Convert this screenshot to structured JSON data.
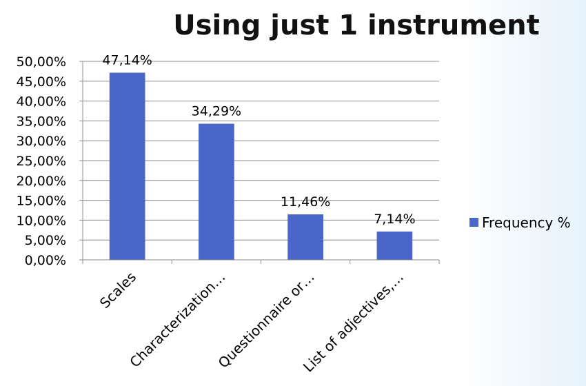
{
  "chart_data": {
    "type": "bar",
    "title": "Using just 1 instrument",
    "categories": [
      "Scales",
      "Characterization…",
      "Questionnaire or…",
      "List of adjectives,…"
    ],
    "series": [
      {
        "name": "Frequency %",
        "values": [
          47.14,
          34.29,
          11.46,
          7.14
        ],
        "labels": [
          "47,14%",
          "34,29%",
          "11,46%",
          "7,14%"
        ]
      }
    ],
    "ylim": [
      0,
      50
    ],
    "yticks": [
      0,
      5,
      10,
      15,
      20,
      25,
      30,
      35,
      40,
      45,
      50
    ],
    "ytick_labels": [
      "0,00%",
      "5,00%",
      "10,00%",
      "15,00%",
      "20,00%",
      "25,00%",
      "30,00%",
      "35,00%",
      "40,00%",
      "45,00%",
      "50,00%"
    ],
    "xlabel": "",
    "ylabel": "",
    "grid": true,
    "legend_position": "right",
    "colors": {
      "bar": "#4a66c9",
      "grid": "#8c8c8c",
      "axis": "#8c8c8c"
    }
  }
}
